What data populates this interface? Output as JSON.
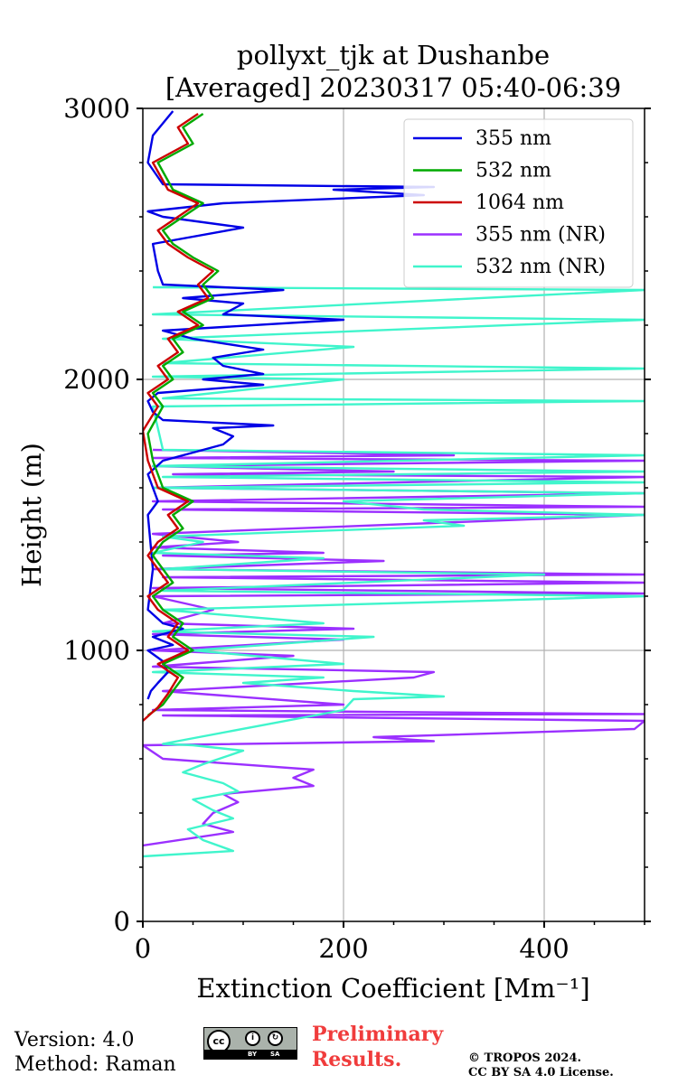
{
  "chart_data": {
    "type": "line",
    "title": [
      "pollyxt_tjk at Dushanbe",
      "[Averaged] 20230317 05:40-06:39"
    ],
    "xlabel": "Extinction Coefficient [Mm⁻¹]",
    "ylabel": "Height (m)",
    "xlim": [
      0,
      500
    ],
    "ylim": [
      0,
      3000
    ],
    "x_ticks": [
      0,
      200,
      400
    ],
    "y_ticks": [
      0,
      1000,
      2000,
      3000
    ],
    "grid": true,
    "legend_position": "top-right",
    "series": [
      {
        "name": "355 nm",
        "color": "#0000e6",
        "points": [
          [
            5,
            820
          ],
          [
            8,
            850
          ],
          [
            15,
            880
          ],
          [
            25,
            920
          ],
          [
            20,
            960
          ],
          [
            5,
            1000
          ],
          [
            30,
            1020
          ],
          [
            10,
            1050
          ],
          [
            40,
            1080
          ],
          [
            20,
            1100
          ],
          [
            5,
            1150
          ],
          [
            10,
            1300
          ],
          [
            5,
            1500
          ],
          [
            15,
            1550
          ],
          [
            5,
            1650
          ],
          [
            20,
            1700
          ],
          [
            80,
            1760
          ],
          [
            90,
            1790
          ],
          [
            70,
            1820
          ],
          [
            130,
            1830
          ],
          [
            20,
            1850
          ],
          [
            10,
            1880
          ],
          [
            5,
            1920
          ],
          [
            15,
            1950
          ],
          [
            120,
            1980
          ],
          [
            60,
            2000
          ],
          [
            120,
            2020
          ],
          [
            80,
            2050
          ],
          [
            70,
            2080
          ],
          [
            120,
            2110
          ],
          [
            50,
            2150
          ],
          [
            20,
            2180
          ],
          [
            200,
            2220
          ],
          [
            80,
            2240
          ],
          [
            100,
            2280
          ],
          [
            40,
            2300
          ],
          [
            140,
            2330
          ],
          [
            20,
            2350
          ],
          [
            15,
            2400
          ],
          [
            10,
            2500
          ],
          [
            100,
            2560
          ],
          [
            20,
            2600
          ],
          [
            5,
            2620
          ],
          [
            80,
            2650
          ],
          [
            280,
            2680
          ],
          [
            190,
            2700
          ],
          [
            290,
            2710
          ],
          [
            20,
            2720
          ],
          [
            5,
            2800
          ],
          [
            10,
            2900
          ],
          [
            30,
            2990
          ]
        ]
      },
      {
        "name": "532 nm",
        "color": "#00aa00",
        "points": [
          [
            5,
            760
          ],
          [
            20,
            800
          ],
          [
            30,
            850
          ],
          [
            40,
            900
          ],
          [
            20,
            950
          ],
          [
            50,
            1000
          ],
          [
            30,
            1050
          ],
          [
            40,
            1100
          ],
          [
            20,
            1150
          ],
          [
            10,
            1200
          ],
          [
            30,
            1250
          ],
          [
            20,
            1300
          ],
          [
            10,
            1350
          ],
          [
            20,
            1400
          ],
          [
            40,
            1450
          ],
          [
            30,
            1500
          ],
          [
            50,
            1550
          ],
          [
            20,
            1600
          ],
          [
            10,
            1700
          ],
          [
            5,
            1800
          ],
          [
            20,
            1900
          ],
          [
            10,
            1950
          ],
          [
            30,
            2000
          ],
          [
            20,
            2050
          ],
          [
            40,
            2100
          ],
          [
            30,
            2150
          ],
          [
            60,
            2200
          ],
          [
            40,
            2250
          ],
          [
            70,
            2300
          ],
          [
            60,
            2350
          ],
          [
            75,
            2400
          ],
          [
            50,
            2450
          ],
          [
            30,
            2500
          ],
          [
            20,
            2550
          ],
          [
            60,
            2650
          ],
          [
            30,
            2700
          ],
          [
            15,
            2800
          ],
          [
            50,
            2870
          ],
          [
            40,
            2930
          ],
          [
            60,
            2980
          ]
        ]
      },
      {
        "name": "1064 nm",
        "color": "#cc0000",
        "points": [
          [
            0,
            740
          ],
          [
            15,
            790
          ],
          [
            25,
            840
          ],
          [
            35,
            900
          ],
          [
            15,
            950
          ],
          [
            45,
            1000
          ],
          [
            25,
            1050
          ],
          [
            35,
            1100
          ],
          [
            15,
            1150
          ],
          [
            5,
            1200
          ],
          [
            25,
            1250
          ],
          [
            15,
            1300
          ],
          [
            5,
            1350
          ],
          [
            15,
            1400
          ],
          [
            35,
            1450
          ],
          [
            25,
            1500
          ],
          [
            45,
            1550
          ],
          [
            15,
            1600
          ],
          [
            5,
            1700
          ],
          [
            0,
            1810
          ],
          [
            15,
            1900
          ],
          [
            5,
            1950
          ],
          [
            25,
            2000
          ],
          [
            15,
            2050
          ],
          [
            35,
            2100
          ],
          [
            25,
            2150
          ],
          [
            55,
            2200
          ],
          [
            35,
            2250
          ],
          [
            65,
            2300
          ],
          [
            55,
            2350
          ],
          [
            70,
            2400
          ],
          [
            45,
            2450
          ],
          [
            25,
            2500
          ],
          [
            15,
            2550
          ],
          [
            55,
            2650
          ],
          [
            25,
            2700
          ],
          [
            10,
            2800
          ],
          [
            45,
            2870
          ],
          [
            35,
            2930
          ],
          [
            55,
            2980
          ]
        ]
      },
      {
        "name": "355 nm (NR)",
        "color": "#9b30ff",
        "points": [
          [
            0,
            280
          ],
          [
            90,
            330
          ],
          [
            60,
            360
          ],
          [
            70,
            400
          ],
          [
            95,
            440
          ],
          [
            80,
            470
          ],
          [
            170,
            500
          ],
          [
            150,
            530
          ],
          [
            170,
            560
          ],
          [
            20,
            600
          ],
          [
            0,
            650
          ],
          [
            290,
            665
          ],
          [
            230,
            680
          ],
          [
            490,
            710
          ],
          [
            500,
            740
          ],
          [
            20,
            760
          ],
          [
            500,
            765
          ],
          [
            10,
            780
          ],
          [
            200,
            800
          ],
          [
            20,
            850
          ],
          [
            270,
            900
          ],
          [
            290,
            920
          ],
          [
            10,
            940
          ],
          [
            150,
            980
          ],
          [
            10,
            1000
          ],
          [
            200,
            1040
          ],
          [
            10,
            1060
          ],
          [
            210,
            1080
          ],
          [
            20,
            1100
          ],
          [
            70,
            1150
          ],
          [
            10,
            1200
          ],
          [
            500,
            1210
          ],
          [
            10,
            1230
          ],
          [
            500,
            1250
          ],
          [
            20,
            1270
          ],
          [
            500,
            1280
          ],
          [
            10,
            1300
          ],
          [
            240,
            1330
          ],
          [
            20,
            1350
          ],
          [
            180,
            1360
          ],
          [
            10,
            1380
          ],
          [
            95,
            1400
          ],
          [
            10,
            1430
          ],
          [
            500,
            1500
          ],
          [
            20,
            1520
          ],
          [
            500,
            1530
          ],
          [
            10,
            1550
          ],
          [
            500,
            1580
          ],
          [
            10,
            1600
          ],
          [
            500,
            1640
          ],
          [
            30,
            1650
          ],
          [
            250,
            1660
          ],
          [
            10,
            1680
          ],
          [
            500,
            1700
          ],
          [
            10,
            1710
          ],
          [
            310,
            1720
          ],
          [
            10,
            1740
          ]
        ]
      },
      {
        "name": "532 nm (NR)",
        "color": "#40f5cc",
        "points": [
          [
            0,
            240
          ],
          [
            90,
            260
          ],
          [
            60,
            300
          ],
          [
            45,
            340
          ],
          [
            90,
            380
          ],
          [
            70,
            410
          ],
          [
            50,
            450
          ],
          [
            95,
            480
          ],
          [
            80,
            510
          ],
          [
            40,
            550
          ],
          [
            60,
            580
          ],
          [
            100,
            630
          ],
          [
            50,
            650
          ],
          [
            20,
            655
          ],
          [
            200,
            780
          ],
          [
            210,
            820
          ],
          [
            300,
            830
          ],
          [
            210,
            850
          ],
          [
            100,
            880
          ],
          [
            180,
            900
          ],
          [
            10,
            920
          ],
          [
            200,
            950
          ],
          [
            50,
            1000
          ],
          [
            230,
            1050
          ],
          [
            10,
            1070
          ],
          [
            180,
            1100
          ],
          [
            20,
            1150
          ],
          [
            500,
            1200
          ],
          [
            20,
            1220
          ],
          [
            400,
            1280
          ],
          [
            20,
            1300
          ],
          [
            180,
            1340
          ],
          [
            10,
            1360
          ],
          [
            60,
            1400
          ],
          [
            20,
            1420
          ],
          [
            320,
            1460
          ],
          [
            280,
            1480
          ],
          [
            500,
            1500
          ],
          [
            280,
            1520
          ],
          [
            200,
            1550
          ],
          [
            500,
            1580
          ],
          [
            10,
            1600
          ],
          [
            500,
            1620
          ],
          [
            20,
            1640
          ],
          [
            500,
            1660
          ],
          [
            10,
            1680
          ],
          [
            500,
            1720
          ],
          [
            20,
            1740
          ],
          [
            10,
            1900
          ],
          [
            500,
            1920
          ],
          [
            20,
            1930
          ],
          [
            200,
            2000
          ],
          [
            10,
            2010
          ],
          [
            500,
            2040
          ],
          [
            20,
            2060
          ],
          [
            210,
            2120
          ],
          [
            20,
            2150
          ],
          [
            500,
            2220
          ],
          [
            10,
            2240
          ],
          [
            500,
            2330
          ],
          [
            10,
            2340
          ]
        ]
      }
    ]
  },
  "footer": {
    "version": "Version: 4.0",
    "method": "Method: Raman",
    "preliminary": [
      "Preliminary",
      "Results."
    ],
    "copyright": [
      "© TROPOS 2024.",
      "CC BY SA 4.0 License."
    ],
    "license_badge": [
      "cc",
      "BY",
      "SA"
    ]
  }
}
